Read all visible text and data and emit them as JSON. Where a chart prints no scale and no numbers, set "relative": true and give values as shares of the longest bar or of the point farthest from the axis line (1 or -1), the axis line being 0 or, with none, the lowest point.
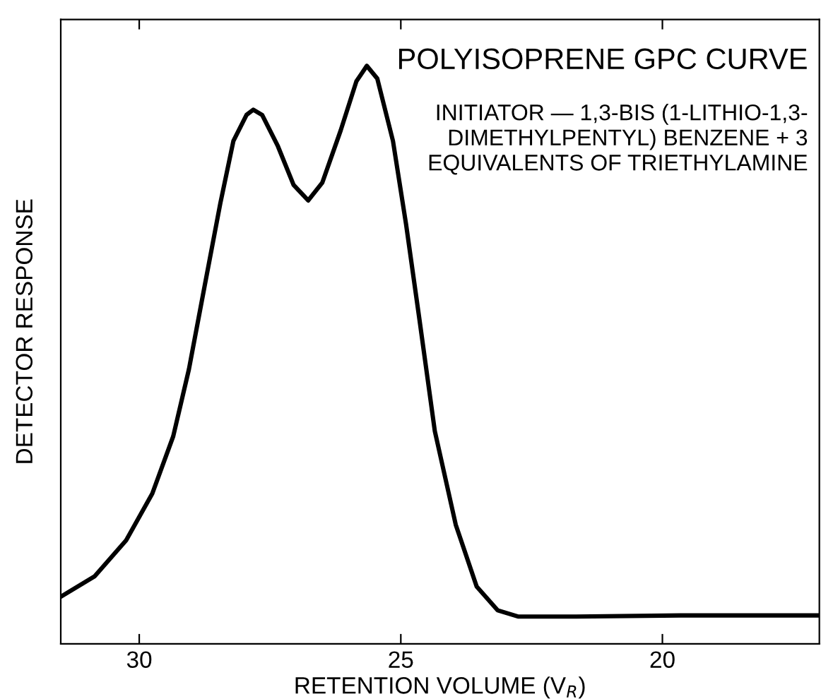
{
  "chart_data": {
    "type": "line",
    "title": "POLYISOPRENE GPC CURVE",
    "xlabel": "RETENTION VOLUME (V$_{R}$)",
    "ylabel": "DETECTOR RESPONSE",
    "annotations": [
      "INITIATOR — 1,3-BIS (1-LITHIO-1,3-\nDIMETHYLPENTYL) BENZENE + 3\nEQUIVALENTS OF TRIETHYLAMINE"
    ],
    "relative": true,
    "xlim": [
      31.5,
      17
    ],
    "xticks": [
      30,
      25,
      20
    ],
    "grid": false,
    "legend": false,
    "marker": "none",
    "line_style": "solid",
    "x": [
      31.47,
      30.85,
      30.25,
      29.75,
      29.35,
      29.05,
      28.75,
      28.45,
      28.2,
      27.95,
      27.82,
      27.65,
      27.35,
      27.05,
      26.77,
      26.5,
      26.15,
      25.85,
      25.65,
      25.45,
      25.15,
      24.9,
      24.65,
      24.35,
      23.95,
      23.55,
      23.15,
      22.75,
      21.65,
      19.65,
      17
    ],
    "series": [
      {
        "color": "#000000",
        "values": [
          0.083,
          0.117,
          0.179,
          0.26,
          0.359,
          0.475,
          0.619,
          0.762,
          0.87,
          0.915,
          0.924,
          0.915,
          0.861,
          0.794,
          0.767,
          0.798,
          0.888,
          0.973,
          1.0,
          0.978,
          0.87,
          0.726,
          0.565,
          0.368,
          0.206,
          0.099,
          0.058,
          0.047,
          0.047,
          0.049,
          0.049
        ]
      }
    ]
  }
}
